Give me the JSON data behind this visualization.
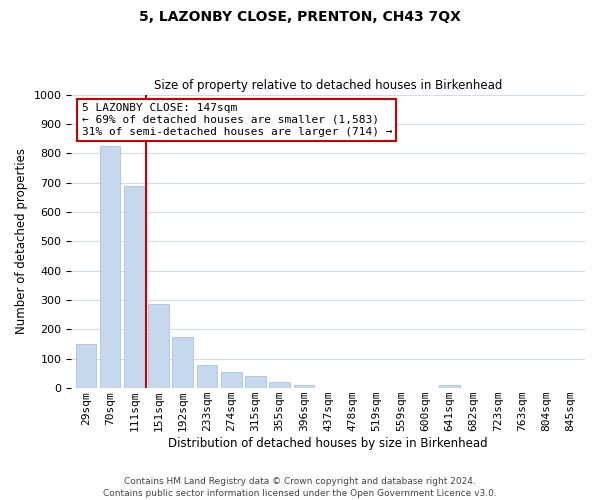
{
  "title": "5, LAZONBY CLOSE, PRENTON, CH43 7QX",
  "subtitle": "Size of property relative to detached houses in Birkenhead",
  "xlabel": "Distribution of detached houses by size in Birkenhead",
  "ylabel": "Number of detached properties",
  "categories": [
    "29sqm",
    "70sqm",
    "111sqm",
    "151sqm",
    "192sqm",
    "233sqm",
    "274sqm",
    "315sqm",
    "355sqm",
    "396sqm",
    "437sqm",
    "478sqm",
    "519sqm",
    "559sqm",
    "600sqm",
    "641sqm",
    "682sqm",
    "723sqm",
    "763sqm",
    "804sqm",
    "845sqm"
  ],
  "values": [
    150,
    825,
    688,
    285,
    175,
    78,
    55,
    42,
    20,
    10,
    0,
    0,
    0,
    0,
    0,
    10,
    0,
    0,
    0,
    0,
    0
  ],
  "bar_color": "#c5d8ed",
  "bar_edge_color": "#a8c4df",
  "vline_color": "#cc0000",
  "annotation_text": "5 LAZONBY CLOSE: 147sqm\n← 69% of detached houses are smaller (1,583)\n31% of semi-detached houses are larger (714) →",
  "annotation_box_color": "#ffffff",
  "annotation_box_edge": "#cc0000",
  "ylim": [
    0,
    1000
  ],
  "yticks": [
    0,
    100,
    200,
    300,
    400,
    500,
    600,
    700,
    800,
    900,
    1000
  ],
  "footer1": "Contains HM Land Registry data © Crown copyright and database right 2024.",
  "footer2": "Contains public sector information licensed under the Open Government Licence v3.0.",
  "grid_color": "#d0dde8",
  "background_color": "#ffffff",
  "title_fontsize": 10,
  "subtitle_fontsize": 8.5,
  "xlabel_fontsize": 8.5,
  "ylabel_fontsize": 8.5,
  "tick_fontsize": 8,
  "annotation_fontsize": 8,
  "footer_fontsize": 6.5
}
